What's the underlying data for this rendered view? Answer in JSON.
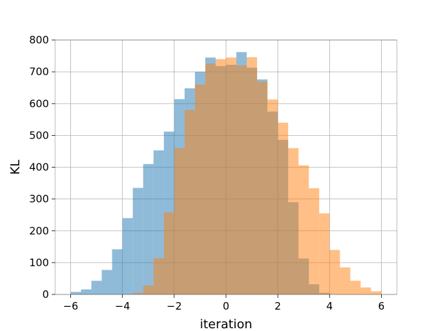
{
  "chart_data": {
    "type": "bar",
    "title": "",
    "xlabel": "iteration",
    "ylabel": "KL",
    "xlim": [
      -6.6,
      6.6
    ],
    "ylim": [
      0,
      800
    ],
    "xticks": [
      -6,
      -4,
      -2,
      0,
      2,
      4,
      6
    ],
    "yticks": [
      0,
      100,
      200,
      300,
      400,
      500,
      600,
      700,
      800
    ],
    "xtick_labels": [
      "−6",
      "−4",
      "−2",
      "0",
      "2",
      "4",
      "6"
    ],
    "ytick_labels": [
      "0",
      "100",
      "200",
      "300",
      "400",
      "500",
      "600",
      "700",
      "800"
    ],
    "grid": true,
    "bin_width": 0.4,
    "series": [
      {
        "color": "#1f77b4",
        "alpha": 0.5,
        "bin_starts": [
          -6.0,
          -5.6,
          -5.2,
          -4.8,
          -4.4,
          -4.0,
          -3.6,
          -3.2,
          -2.8,
          -2.4,
          -2.0,
          -1.6,
          -1.2,
          -0.8,
          -0.4,
          0.0,
          0.4,
          0.8,
          1.2,
          1.6,
          2.0,
          2.4,
          2.8,
          3.2,
          3.6
        ],
        "values": [
          8,
          16,
          43,
          77,
          142,
          240,
          335,
          410,
          453,
          512,
          614,
          648,
          700,
          745,
          718,
          722,
          762,
          713,
          676,
          575,
          486,
          290,
          113,
          32,
          5
        ]
      },
      {
        "color": "#ff7f0e",
        "alpha": 0.5,
        "bin_starts": [
          -3.6,
          -3.2,
          -2.8,
          -2.4,
          -2.0,
          -1.6,
          -1.2,
          -0.8,
          -0.4,
          0.0,
          0.4,
          0.8,
          1.2,
          1.6,
          2.0,
          2.4,
          2.8,
          3.2,
          3.6,
          4.0,
          4.4,
          4.8,
          5.2,
          5.6
        ],
        "values": [
          5,
          28,
          114,
          258,
          460,
          580,
          660,
          726,
          740,
          745,
          720,
          746,
          669,
          613,
          540,
          460,
          406,
          334,
          255,
          140,
          85,
          43,
          22,
          10
        ]
      }
    ]
  }
}
